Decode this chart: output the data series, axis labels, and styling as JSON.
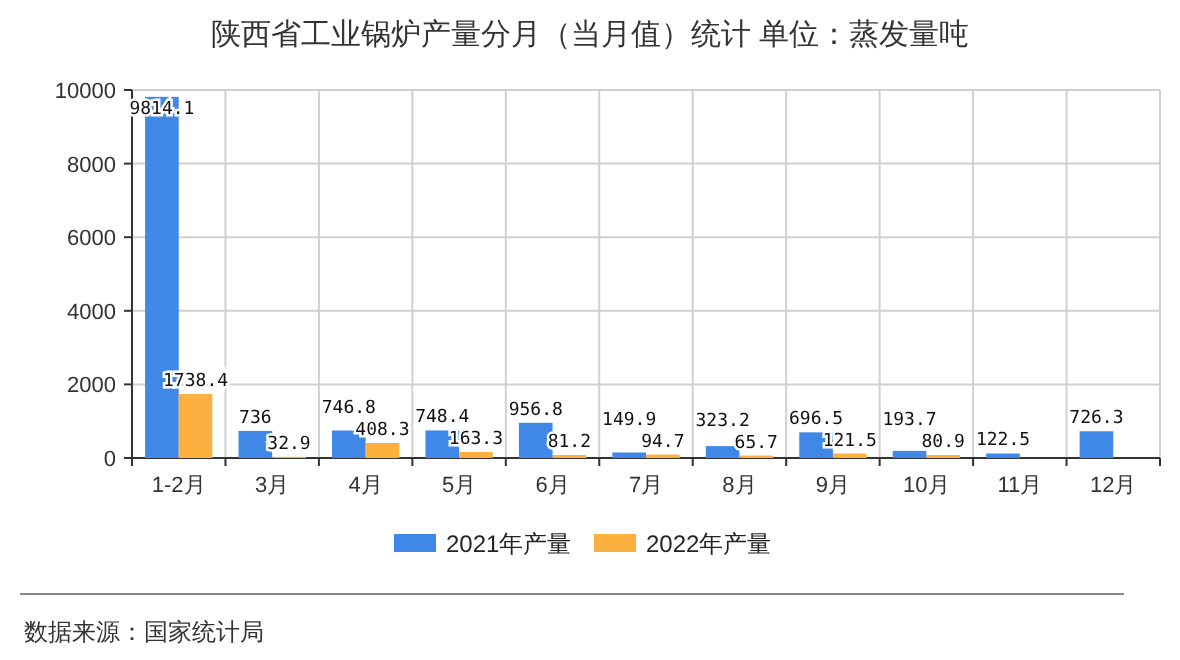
{
  "chart_data": {
    "type": "bar",
    "title": "陕西省工业锅炉产量分月（当月值）统计 单位：蒸发量吨",
    "categories": [
      "1-2月",
      "3月",
      "4月",
      "5月",
      "6月",
      "7月",
      "8月",
      "9月",
      "10月",
      "11月",
      "12月"
    ],
    "series": [
      {
        "name": "2021年产量",
        "color": "#3f88e8",
        "values": [
          9814.1,
          736,
          746.8,
          748.4,
          956.8,
          149.9,
          323.2,
          696.5,
          193.7,
          122.5,
          726.3
        ]
      },
      {
        "name": "2022年产量",
        "color": "#fbb040",
        "values": [
          1738.4,
          32.9,
          408.3,
          163.3,
          81.2,
          94.7,
          65.7,
          121.5,
          80.9,
          null,
          null
        ]
      }
    ],
    "ylim": [
      0,
      10000
    ],
    "yticks": [
      0,
      2000,
      4000,
      6000,
      8000,
      10000
    ],
    "grid": true,
    "legend": "bottom",
    "data_labels": true,
    "annotations": [
      "数据来源：国家统计局"
    ]
  }
}
